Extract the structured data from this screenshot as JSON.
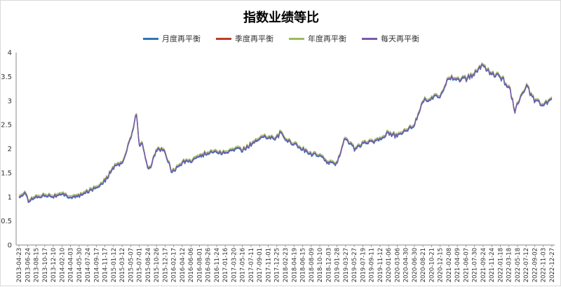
{
  "chart_data": {
    "type": "line",
    "title": "指数业绩等比",
    "ylim": [
      0,
      4
    ],
    "yticks": [
      "0",
      "0.5",
      "1",
      "1.5",
      "2",
      "2.5",
      "3",
      "3.5",
      "4"
    ],
    "xticks": [
      "2013-04-23",
      "2013-06-24",
      "2013-08-15",
      "2013-10-17",
      "2013-12-10",
      "2014-02-10",
      "2014-04-03",
      "2014-05-30",
      "2014-07-24",
      "2014-09-17",
      "2014-11-17",
      "2015-01-12",
      "2015-03-12",
      "2015-05-07",
      "2015-07-01",
      "2015-08-24",
      "2015-10-26",
      "2015-12-17",
      "2016-02-17",
      "2016-04-12",
      "2016-06-06",
      "2016-08-01",
      "2016-09-26",
      "2016-11-24",
      "2017-01-16",
      "2017-03-20",
      "2017-05-16",
      "2017-07-11",
      "2017-09-01",
      "2017-11-01",
      "2017-12-25",
      "2018-02-23",
      "2018-04-19",
      "2018-06-15",
      "2018-08-09",
      "2018-10-10",
      "2018-12-03",
      "2019-01-28",
      "2019-03-27",
      "2019-05-27",
      "2019-07-19",
      "2019-09-11",
      "2019-11-12",
      "2020-01-06",
      "2020-03-06",
      "2020-04-30",
      "2020-06-30",
      "2020-08-21",
      "2020-10-21",
      "2020-12-15",
      "2021-02-08",
      "2021-04-09",
      "2021-06-07",
      "2021-07-30",
      "2021-09-24",
      "2021-11-24",
      "2022-01-18",
      "2022-03-18",
      "2022-05-18",
      "2022-07-12",
      "2022-09-02",
      "2022-11-03",
      "2022-12-27"
    ],
    "legend_position": "top",
    "series": [
      {
        "name": "月度再平衡",
        "color": "#2e75b6",
        "offset": -0.02
      },
      {
        "name": "季度再平衡",
        "color": "#c0392b",
        "offset": 0.0
      },
      {
        "name": "年度再平衡",
        "color": "#9bbb59",
        "offset": 0.03
      },
      {
        "name": "每天再平衡",
        "color": "#7a5ba8",
        "offset": 0.0
      }
    ],
    "x": [
      "2013-04-23",
      "2013-06-01",
      "2013-06-24",
      "2013-08-15",
      "2013-10-17",
      "2013-12-10",
      "2014-02-10",
      "2014-04-03",
      "2014-05-30",
      "2014-07-24",
      "2014-09-17",
      "2014-11-17",
      "2015-01-12",
      "2015-03-12",
      "2015-05-07",
      "2015-06-12",
      "2015-07-01",
      "2015-07-20",
      "2015-08-24",
      "2015-09-15",
      "2015-10-26",
      "2015-12-17",
      "2016-01-28",
      "2016-02-17",
      "2016-04-12",
      "2016-06-06",
      "2016-08-01",
      "2016-09-26",
      "2016-11-24",
      "2017-01-16",
      "2017-03-20",
      "2017-05-16",
      "2017-07-11",
      "2017-09-01",
      "2017-11-01",
      "2017-12-25",
      "2018-01-25",
      "2018-02-23",
      "2018-04-19",
      "2018-06-15",
      "2018-08-09",
      "2018-10-10",
      "2018-12-03",
      "2019-01-28",
      "2019-03-27",
      "2019-05-27",
      "2019-07-19",
      "2019-09-11",
      "2019-11-12",
      "2020-01-06",
      "2020-03-06",
      "2020-04-30",
      "2020-06-30",
      "2020-08-21",
      "2020-10-21",
      "2020-12-15",
      "2021-02-08",
      "2021-04-09",
      "2021-06-07",
      "2021-07-30",
      "2021-09-24",
      "2021-11-24",
      "2022-01-18",
      "2022-03-18",
      "2022-04-26",
      "2022-05-18",
      "2022-07-12",
      "2022-09-02",
      "2022-11-03",
      "2022-12-27"
    ],
    "values": [
      1.0,
      1.08,
      0.93,
      1.0,
      1.05,
      1.02,
      1.05,
      1.0,
      1.02,
      1.12,
      1.2,
      1.35,
      1.62,
      1.72,
      2.25,
      2.75,
      2.05,
      2.1,
      1.62,
      1.65,
      2.0,
      1.95,
      1.55,
      1.55,
      1.72,
      1.76,
      1.85,
      1.92,
      1.95,
      1.9,
      2.0,
      1.98,
      2.1,
      2.2,
      2.27,
      2.22,
      2.35,
      2.2,
      2.12,
      2.0,
      1.9,
      1.85,
      1.72,
      1.68,
      2.25,
      2.0,
      2.1,
      2.15,
      2.2,
      2.35,
      2.25,
      2.4,
      2.5,
      3.0,
      3.05,
      3.1,
      3.5,
      3.45,
      3.45,
      3.55,
      3.75,
      3.55,
      3.5,
      3.3,
      2.8,
      2.95,
      3.3,
      3.0,
      2.9,
      3.05
    ]
  }
}
